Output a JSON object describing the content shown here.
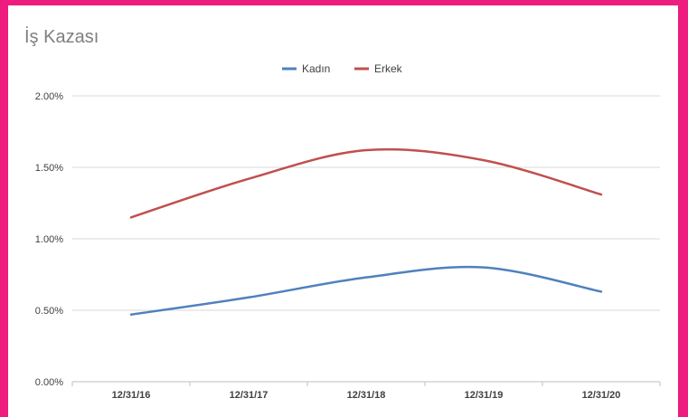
{
  "chart_data": {
    "type": "line",
    "title": "İş Kazası",
    "x": [
      "12/31/16",
      "12/31/17",
      "12/31/18",
      "12/31/19",
      "12/31/20"
    ],
    "series": [
      {
        "name": "Kadın",
        "color": "#4f81bd",
        "values": [
          0.47,
          0.59,
          0.73,
          0.8,
          0.63
        ]
      },
      {
        "name": "Erkek",
        "color": "#c0504d",
        "values": [
          1.15,
          1.42,
          1.62,
          1.55,
          1.31
        ]
      }
    ],
    "ylim": [
      0,
      2
    ],
    "yticks": [
      {
        "value": 0,
        "label": "0.00%"
      },
      {
        "value": 0.5,
        "label": "0.50%"
      },
      {
        "value": 1,
        "label": "1.00%"
      },
      {
        "value": 1.5,
        "label": "1.50%"
      },
      {
        "value": 2,
        "label": "2.00%"
      }
    ],
    "grid": true,
    "legend": "top-center"
  }
}
